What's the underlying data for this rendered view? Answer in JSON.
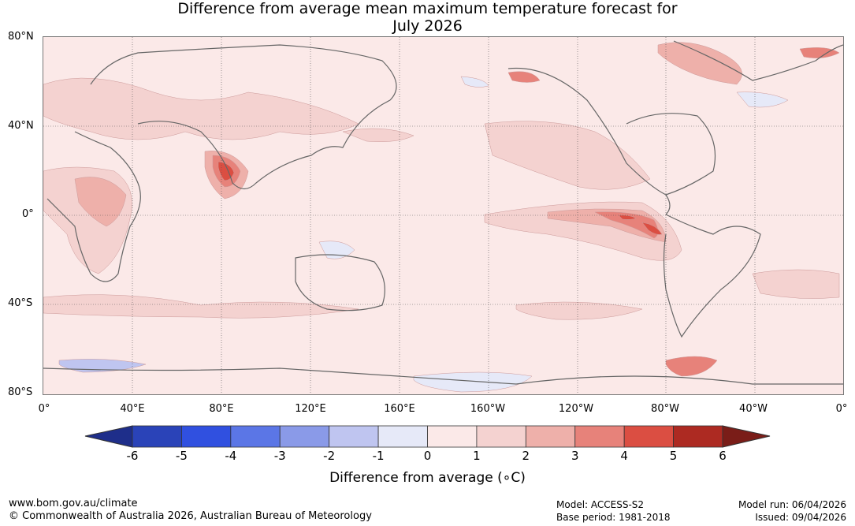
{
  "title_line1": "Difference from average mean maximum temperature forecast for",
  "title_line2": "July 2026",
  "y_labels": [
    "80°N",
    "40°N",
    "0°",
    "40°S",
    "80°S"
  ],
  "x_labels": [
    "0°",
    "40°E",
    "80°E",
    "120°E",
    "160°E",
    "160°W",
    "120°W",
    "80°W",
    "40°W",
    "0°"
  ],
  "colorbar": {
    "ticks": [
      "-6",
      "-5",
      "-4",
      "-3",
      "-2",
      "-1",
      "0",
      "1",
      "2",
      "3",
      "4",
      "5",
      "6"
    ],
    "colors": [
      "#1e2e8a",
      "#2a43b8",
      "#3050e0",
      "#5b76e6",
      "#8a9ae8",
      "#bfc5f0",
      "#e6e9f8",
      "#fbe9e8",
      "#f4d2d0",
      "#eeb0aa",
      "#e7827a",
      "#db4e42",
      "#ad2a22",
      "#7a1d18"
    ],
    "label": "Difference from average (∘C)"
  },
  "footer": {
    "url": "www.bom.gov.au/climate",
    "copyright": "© Commonwealth of Australia 2026, Australian Bureau of Meteorology",
    "model": "Model: ACCESS-S2",
    "base_period": "Base period: 1981-2018",
    "model_run": "Model run: 06/04/2026",
    "issued": "Issued: 09/04/2026"
  }
}
